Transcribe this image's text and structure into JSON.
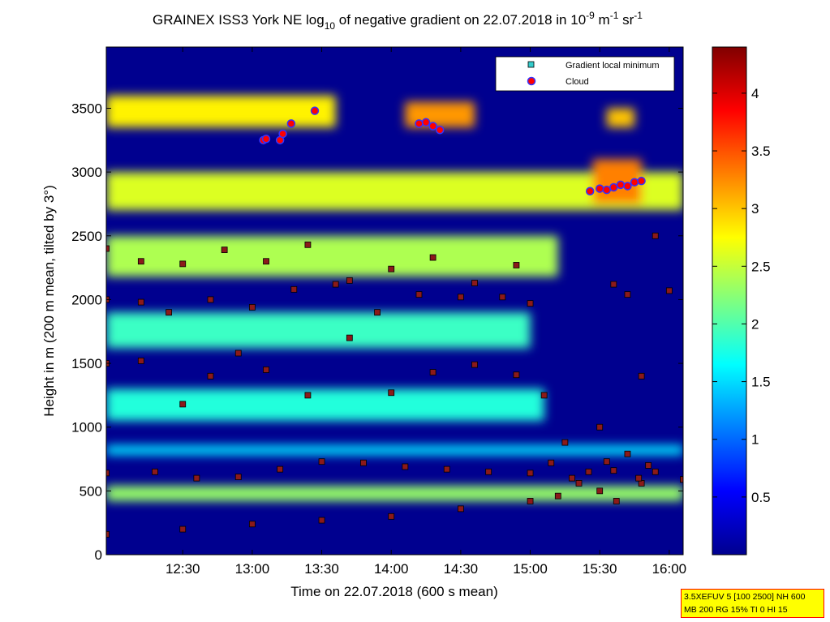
{
  "chart_data": {
    "type": "heatmap",
    "title": {
      "prefix": "GRAINEX ISS3 York NE log",
      "prefix_sub": "10",
      "middle": " of negative gradient on 22.07.2018 in 10",
      "exp1": "-9",
      "unit1": " m",
      "exp2": "-1",
      "unit2": " sr",
      "exp3": "-1"
    },
    "xlabel": "Time on 22.07.2018 (600 s mean)",
    "ylabel": "Height in m (200 m mean, tilted by 3°)",
    "x_range_hours": [
      11.95,
      16.1
    ],
    "x_ticks": [
      {
        "label": "12:30",
        "value": 12.5
      },
      {
        "label": "13:00",
        "value": 13.0
      },
      {
        "label": "13:30",
        "value": 13.5
      },
      {
        "label": "14:00",
        "value": 14.0
      },
      {
        "label": "14:30",
        "value": 14.5
      },
      {
        "label": "15:00",
        "value": 15.0
      },
      {
        "label": "15:30",
        "value": 15.5
      },
      {
        "label": "16:00",
        "value": 16.0
      }
    ],
    "y_range": [
      0,
      3980
    ],
    "y_ticks": [
      {
        "label": "0",
        "value": 0
      },
      {
        "label": "500",
        "value": 500
      },
      {
        "label": "1000",
        "value": 1000
      },
      {
        "label": "1500",
        "value": 1500
      },
      {
        "label": "2000",
        "value": 2000
      },
      {
        "label": "2500",
        "value": 2500
      },
      {
        "label": "3000",
        "value": 3000
      },
      {
        "label": "3500",
        "value": 3500
      }
    ],
    "colorbar": {
      "range": [
        0,
        4.4
      ],
      "ticks": [
        {
          "label": "0.5",
          "value": 0.5
        },
        {
          "label": "1",
          "value": 1.0
        },
        {
          "label": "1.5",
          "value": 1.5
        },
        {
          "label": "2",
          "value": 2.0
        },
        {
          "label": "2.5",
          "value": 2.5
        },
        {
          "label": "3",
          "value": 3.0
        },
        {
          "label": "3.5",
          "value": 3.5
        },
        {
          "label": "4",
          "value": 4.0
        }
      ]
    },
    "legend": {
      "placement": "top-right",
      "entries": [
        {
          "label": "Gradient local minimum",
          "marker": "square",
          "color": "#33cccc"
        },
        {
          "label": "Cloud",
          "marker": "circle",
          "color": "#ff0000",
          "edge": "#3333ff"
        }
      ]
    },
    "layers": [
      {
        "t": [
          11.95,
          16.1
        ],
        "h": [
          420,
          540
        ],
        "v": 2.3
      },
      {
        "t": [
          11.95,
          16.1
        ],
        "h": [
          780,
          860
        ],
        "v": 1.5
      },
      {
        "t": [
          11.95,
          15.1
        ],
        "h": [
          1050,
          1300
        ],
        "v": 1.8
      },
      {
        "t": [
          11.95,
          15.0
        ],
        "h": [
          1620,
          1900
        ],
        "v": 1.9
      },
      {
        "t": [
          11.95,
          15.2
        ],
        "h": [
          2180,
          2500
        ],
        "v": 2.4
      },
      {
        "t": [
          11.95,
          16.1
        ],
        "h": [
          2700,
          3000
        ],
        "v": 2.6
      },
      {
        "t": [
          11.95,
          13.6
        ],
        "h": [
          3350,
          3600
        ],
        "v": 2.8
      },
      {
        "t": [
          14.1,
          14.6
        ],
        "h": [
          3350,
          3550
        ],
        "v": 3.2
      },
      {
        "t": [
          15.45,
          15.8
        ],
        "h": [
          2750,
          3100
        ],
        "v": 3.3
      },
      {
        "t": [
          15.55,
          15.75
        ],
        "h": [
          3350,
          3500
        ],
        "v": 3.0
      }
    ],
    "series": [
      {
        "name": "Gradient local minimum",
        "kind": "gradient-minimum",
        "t": [
          11.95,
          12.3,
          12.6,
          12.9,
          13.2,
          13.5,
          13.8,
          14.1,
          14.4,
          14.7,
          15.0,
          15.3,
          15.6,
          15.9,
          16.1
        ],
        "h": [
          640,
          650,
          600,
          610,
          670,
          730,
          720,
          690,
          670,
          650,
          640,
          600,
          660,
          650,
          590
        ]
      },
      {
        "name": "Gradient local minimum",
        "kind": "gradient-minimum",
        "t": [
          11.95,
          12.5,
          13.0,
          13.5,
          14.0,
          14.5,
          15.0,
          15.2,
          15.5,
          15.8,
          16.1
        ],
        "h": [
          160,
          200,
          240,
          270,
          300,
          360,
          420,
          460,
          500,
          560,
          590
        ]
      },
      {
        "name": "Gradient local minimum",
        "kind": "gradient-minimum",
        "t": [
          11.95,
          12.2,
          12.4,
          12.7,
          13.0,
          13.3,
          13.6,
          13.9,
          14.2,
          14.5,
          14.8,
          15.0
        ],
        "h": [
          2000,
          1980,
          1900,
          2000,
          1940,
          2080,
          2120,
          1900,
          2040,
          2020,
          2020,
          1970
        ]
      },
      {
        "name": "Gradient local minimum",
        "kind": "gradient-minimum",
        "t": [
          11.95,
          12.2,
          12.5,
          12.8,
          13.1,
          13.4,
          13.7,
          14.0,
          14.3,
          14.6,
          14.9
        ],
        "h": [
          2400,
          2300,
          2280,
          2390,
          2300,
          2430,
          2150,
          2240,
          2330,
          2130,
          2270
        ]
      },
      {
        "name": "Gradient local minimum",
        "kind": "gradient-minimum",
        "t": [
          11.95,
          12.2,
          12.5,
          12.7,
          12.9,
          13.1,
          13.4,
          13.7,
          14.0,
          14.3,
          14.6,
          14.9,
          15.1
        ],
        "h": [
          1500,
          1520,
          1180,
          1400,
          1580,
          1450,
          1250,
          1700,
          1270,
          1430,
          1490,
          1410,
          1250
        ]
      },
      {
        "name": "Gradient local minimum",
        "kind": "gradient-minimum",
        "t": [
          15.15,
          15.25,
          15.35,
          15.42,
          15.5,
          15.55,
          15.62,
          15.7,
          15.78,
          15.85
        ],
        "h": [
          720,
          880,
          560,
          650,
          1000,
          730,
          420,
          790,
          600,
          700
        ]
      },
      {
        "name": "Gradient local minimum",
        "kind": "gradient-minimum",
        "t": [
          15.6,
          15.7,
          15.8,
          15.9,
          16.0
        ],
        "h": [
          2120,
          2040,
          1400,
          2500,
          2070
        ]
      },
      {
        "name": "Cloud",
        "kind": "cloud",
        "t": [
          13.08,
          13.1,
          13.2,
          13.22,
          13.28,
          13.45,
          14.2,
          14.25,
          14.3,
          14.35
        ],
        "h": [
          3250,
          3260,
          3250,
          3300,
          3380,
          3480,
          3380,
          3390,
          3360,
          3330
        ]
      },
      {
        "name": "Cloud",
        "kind": "cloud",
        "t": [
          15.43,
          15.5,
          15.55,
          15.6,
          15.65,
          15.7,
          15.75,
          15.8
        ],
        "h": [
          2850,
          2870,
          2860,
          2880,
          2900,
          2890,
          2920,
          2930
        ]
      }
    ]
  },
  "info_box": {
    "line1": "3.5XEFUV 5 [100 2500] NH 600",
    "line2": "MB 200 RG 15% TI 0 HI 15"
  }
}
